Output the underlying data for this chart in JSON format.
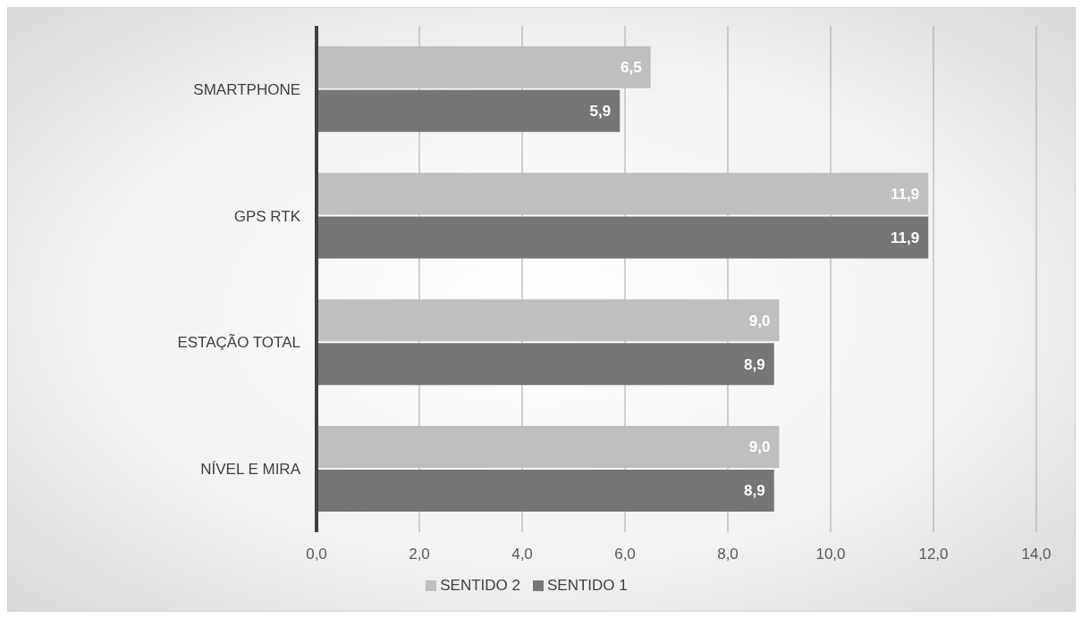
{
  "chart_data": {
    "type": "bar",
    "orientation": "horizontal",
    "categories": [
      "SMARTPHONE",
      "GPS RTK",
      "ESTAÇÃO TOTAL",
      "NÍVEL E MIRA"
    ],
    "series": [
      {
        "name": "SENTIDO 2",
        "color": "#bfbfbf",
        "values": [
          6.5,
          11.9,
          9.0,
          9.0
        ],
        "value_labels": [
          "6,5",
          "11,9",
          "9,0",
          "9,0"
        ]
      },
      {
        "name": "SENTIDO 1",
        "color": "#767676",
        "values": [
          5.9,
          11.9,
          8.9,
          8.9
        ],
        "value_labels": [
          "5,9",
          "11,9",
          "8,9",
          "8,9"
        ]
      }
    ],
    "xlim": [
      0,
      14
    ],
    "xticks": [
      {
        "value": 0,
        "label": "0,0"
      },
      {
        "value": 2,
        "label": "2,0"
      },
      {
        "value": 4,
        "label": "4,0"
      },
      {
        "value": 6,
        "label": "6,0"
      },
      {
        "value": 8,
        "label": "8,0"
      },
      {
        "value": 10,
        "label": "10,0"
      },
      {
        "value": 12,
        "label": "12,0"
      },
      {
        "value": 14,
        "label": "14,0"
      }
    ],
    "grid": "x",
    "legend": "bottom"
  }
}
